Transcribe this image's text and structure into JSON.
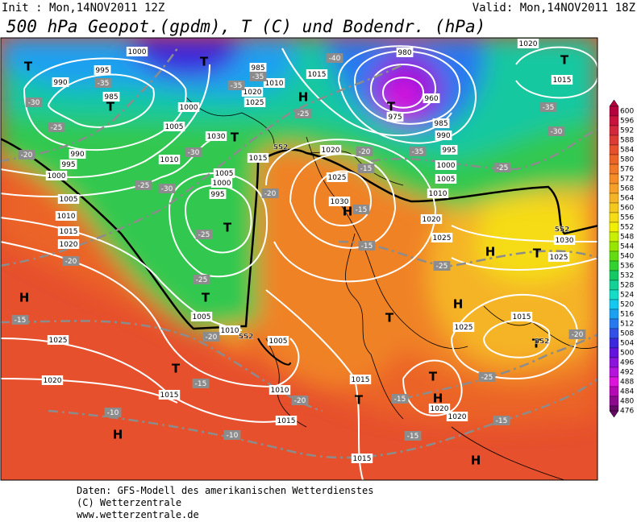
{
  "header": {
    "init": "Init : Mon,14NOV2011 12Z",
    "valid": "Valid: Mon,14NOV2011 18Z",
    "title": "500 hPa Geopot.(gpdm), T (C) und Bodendr. (hPa)"
  },
  "colorbar": {
    "levels": [
      600,
      596,
      592,
      588,
      584,
      580,
      576,
      572,
      568,
      564,
      560,
      556,
      552,
      548,
      544,
      540,
      536,
      532,
      528,
      524,
      520,
      516,
      512,
      508,
      504,
      500,
      496,
      492,
      488,
      484,
      480,
      476
    ],
    "colors": [
      "#b4003c",
      "#c8143c",
      "#d2283c",
      "#dc3c32",
      "#e6502d",
      "#eb6428",
      "#f07828",
      "#f58c28",
      "#f5a028",
      "#f5b428",
      "#f5c81e",
      "#f5dc14",
      "#f0f000",
      "#c8f000",
      "#96e600",
      "#64dc14",
      "#32d232",
      "#14c864",
      "#14d296",
      "#14dcc8",
      "#14c8f0",
      "#1ea0f0",
      "#2878f0",
      "#3250e6",
      "#3c28dc",
      "#6414dc",
      "#8c14dc",
      "#b414dc",
      "#dc14dc",
      "#b40ab4",
      "#8c0a8c",
      "#640a64"
    ]
  },
  "map": {
    "isobar_labels": [
      "995",
      "990",
      "985",
      "1000",
      "1000",
      "1005",
      "1010",
      "990",
      "995",
      "1000",
      "1005",
      "1010",
      "1015",
      "1020",
      "1025",
      "1020",
      "1015",
      "1005",
      "1000",
      "995",
      "1005",
      "1010",
      "1005",
      "1010",
      "1015",
      "1015",
      "1015",
      "1020",
      "1020",
      "1025",
      "1015",
      "1025",
      "1030",
      "1015",
      "1020",
      "1015",
      "1020",
      "1025",
      "1010",
      "1030",
      "1015",
      "1020",
      "1025",
      "1030",
      "1025",
      "1020",
      "1010",
      "1005",
      "1000",
      "995",
      "990",
      "985",
      "960",
      "975",
      "980",
      "985"
    ],
    "temperature_labels": [
      "-35",
      "-30",
      "-25",
      "-20",
      "-30",
      "-30",
      "-25",
      "-25",
      "-25",
      "-20",
      "-15",
      "-20",
      "-15",
      "-20",
      "-10",
      "-10",
      "-15",
      "-15",
      "-15",
      "-25",
      "-25",
      "-20",
      "-15",
      "-15",
      "-15",
      "-20",
      "-35",
      "-25",
      "-35",
      "-40",
      "-35",
      "-35",
      "-25",
      "-20",
      "-30"
    ],
    "centers": [
      "T",
      "T",
      "T",
      "T",
      "T",
      "T",
      "T",
      "H",
      "T",
      "H",
      "H",
      "T",
      "T",
      "H",
      "H",
      "T",
      "T",
      "H",
      "H",
      "H",
      "T",
      "T"
    ],
    "height_labels": [
      "552",
      "552",
      "552",
      "552"
    ]
  },
  "footer": {
    "line1": "Daten: GFS-Modell des amerikanischen Wetterdienstes",
    "line2": "(C) Wetterzentrale",
    "line3": "www.wetterzentrale.de"
  }
}
